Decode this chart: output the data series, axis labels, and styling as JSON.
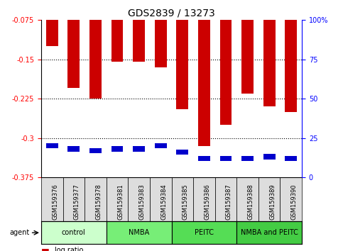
{
  "title": "GDS2839 / 13273",
  "samples": [
    "GSM159376",
    "GSM159377",
    "GSM159378",
    "GSM159381",
    "GSM159383",
    "GSM159384",
    "GSM159385",
    "GSM159386",
    "GSM159387",
    "GSM159388",
    "GSM159389",
    "GSM159390"
  ],
  "log_ratios": [
    -0.125,
    -0.205,
    -0.225,
    -0.155,
    -0.155,
    -0.165,
    -0.245,
    -0.315,
    -0.275,
    -0.215,
    -0.24,
    -0.25
  ],
  "percentile_ranks_pct": [
    20,
    18,
    17,
    18,
    18,
    20,
    16,
    12,
    12,
    12,
    13,
    12
  ],
  "groups": [
    {
      "label": "control",
      "start": 0,
      "end": 2,
      "color": "#ccffcc"
    },
    {
      "label": "NMBA",
      "start": 3,
      "end": 5,
      "color": "#77ee77"
    },
    {
      "label": "PEITC",
      "start": 6,
      "end": 8,
      "color": "#55dd55"
    },
    {
      "label": "NMBA and PEITC",
      "start": 9,
      "end": 11,
      "color": "#44cc44"
    }
  ],
  "ylim": [
    -0.375,
    -0.075
  ],
  "yticks_left": [
    -0.375,
    -0.3,
    -0.225,
    -0.15,
    -0.075
  ],
  "yticks_right_pct": [
    0,
    25,
    50,
    75,
    100
  ],
  "bar_color": "#cc0000",
  "marker_color": "#0000cc",
  "bar_width": 0.55,
  "title_fontsize": 10,
  "tick_fontsize": 7,
  "sample_fontsize": 6
}
